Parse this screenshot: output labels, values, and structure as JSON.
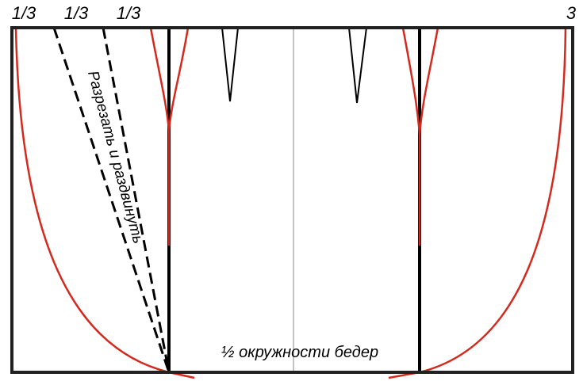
{
  "top_labels": [
    "1/3",
    "1/3",
    "1/3",
    "3"
  ],
  "cut_label": "Разрезать и раздвинуть",
  "bottom_label": "½ окружности бедер"
}
